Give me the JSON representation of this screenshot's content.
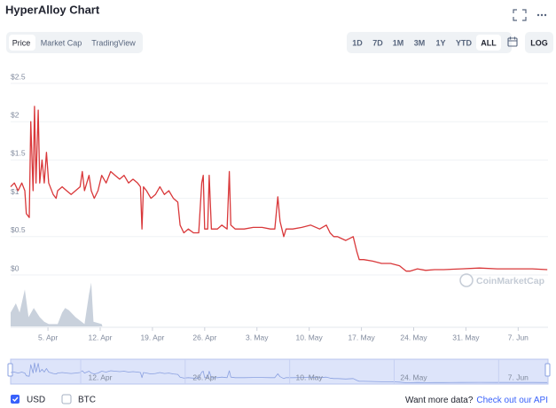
{
  "chart_data": {
    "type": "line",
    "title": "HyperAlloy Chart",
    "x": [
      0.0,
      0.5,
      1.0,
      1.5,
      1.9,
      2.1,
      2.5,
      2.7,
      3.0,
      3.2,
      3.4,
      3.7,
      3.9,
      4.2,
      4.5,
      4.8,
      5.1,
      5.7,
      6.1,
      6.3,
      6.9,
      7.5,
      8.1,
      8.7,
      9.3,
      9.6,
      9.9,
      10.5,
      10.8,
      11.2,
      11.7,
      12.2,
      12.8,
      13.4,
      14.0,
      14.6,
      15.2,
      15.8,
      16.4,
      17.0,
      17.4,
      17.6,
      17.8,
      18.2,
      18.8,
      19.4,
      20.0,
      20.6,
      21.2,
      21.8,
      22.4,
      22.7,
      23.2,
      23.8,
      24.5,
      25.2,
      25.6,
      25.8,
      26.0,
      26.4,
      26.6,
      26.9,
      27.7,
      28.3,
      29.0,
      29.3,
      29.5,
      30.1,
      31.3,
      32.5,
      33.7,
      34.8,
      35.4,
      35.8,
      36.1,
      36.6,
      36.9,
      37.8,
      39.0,
      40.2,
      41.4,
      42.3,
      42.8,
      43.3,
      43.8,
      44.9,
      45.9,
      46.4,
      46.7,
      47.3,
      48.5,
      49.7,
      50.9,
      52.1,
      53.0,
      53.5,
      54.5,
      55.6,
      56.8,
      58.0,
      60.4,
      62.8,
      65.2,
      67.5,
      69.9,
      71.9
    ],
    "series": [
      {
        "name": "USD",
        "color": "#d9383a",
        "values": [
          1.15,
          1.2,
          1.1,
          1.2,
          1.1,
          0.8,
          0.75,
          2.0,
          1.1,
          2.2,
          1.2,
          2.15,
          1.2,
          1.5,
          1.2,
          1.6,
          1.2,
          1.05,
          1.0,
          1.1,
          1.15,
          1.1,
          1.05,
          1.1,
          1.15,
          1.35,
          1.1,
          1.3,
          1.1,
          1.0,
          1.1,
          1.3,
          1.2,
          1.35,
          1.3,
          1.25,
          1.3,
          1.2,
          1.25,
          1.2,
          1.15,
          0.6,
          1.15,
          1.1,
          1.0,
          1.05,
          1.15,
          1.05,
          1.1,
          1.0,
          0.95,
          0.65,
          0.55,
          0.6,
          0.55,
          0.55,
          1.2,
          1.3,
          0.6,
          0.6,
          1.3,
          0.6,
          0.6,
          0.65,
          0.6,
          1.35,
          0.65,
          0.6,
          0.6,
          0.62,
          0.62,
          0.6,
          0.6,
          1.02,
          0.7,
          0.5,
          0.6,
          0.6,
          0.62,
          0.65,
          0.6,
          0.65,
          0.55,
          0.5,
          0.5,
          0.45,
          0.5,
          0.3,
          0.2,
          0.2,
          0.18,
          0.15,
          0.15,
          0.12,
          0.05,
          0.05,
          0.08,
          0.06,
          0.07,
          0.07,
          0.08,
          0.09,
          0.08,
          0.08,
          0.08,
          0.07
        ]
      }
    ],
    "xlim": [
      0,
      72
    ],
    "ylim": [
      0,
      2.5
    ],
    "yticks": [
      {
        "value": 0,
        "label": "$0"
      },
      {
        "value": 0.5,
        "label": "$0.5"
      },
      {
        "value": 1,
        "label": "$1"
      },
      {
        "value": 1.5,
        "label": "$1.5"
      },
      {
        "value": 2,
        "label": "$2"
      },
      {
        "value": 2.5,
        "label": "$2.5"
      }
    ],
    "xticks": [
      {
        "value": 5,
        "label": "5. Apr"
      },
      {
        "value": 12,
        "label": "12. Apr"
      },
      {
        "value": 19,
        "label": "19. Apr"
      },
      {
        "value": 26,
        "label": "26. Apr"
      },
      {
        "value": 33,
        "label": "3. May"
      },
      {
        "value": 40,
        "label": "10. May"
      },
      {
        "value": 47,
        "label": "17. May"
      },
      {
        "value": 54,
        "label": "24. May"
      },
      {
        "value": 61,
        "label": "31. May"
      },
      {
        "value": 68,
        "label": "7. Jun"
      }
    ],
    "navigator_xticks": [
      {
        "value": 12,
        "label": "12. Apr"
      },
      {
        "value": 26,
        "label": "26. Apr"
      },
      {
        "value": 40,
        "label": "10. May"
      },
      {
        "value": 54,
        "label": "24. May"
      },
      {
        "value": 68,
        "label": "7. Jun"
      }
    ],
    "grid": true,
    "volume": {
      "color": "#c9d1dc",
      "ylim": [
        0,
        1
      ],
      "x": [
        0.0,
        0.7,
        1.2,
        1.9,
        2.4,
        3.1,
        3.9,
        4.5,
        5.1,
        6.3,
        6.9,
        7.3,
        7.8,
        8.7,
        9.9,
        10.5,
        10.8,
        11.1,
        12.2,
        12.3
      ],
      "values": [
        0.3,
        0.5,
        0.3,
        0.8,
        0.2,
        0.4,
        0.2,
        0.1,
        0.05,
        0.05,
        0.3,
        0.4,
        0.35,
        0.2,
        0.05,
        0.7,
        0.95,
        0.1,
        0.05,
        0
      ]
    }
  },
  "tabs": [
    "Price",
    "Market Cap",
    "TradingView"
  ],
  "ranges": [
    "1D",
    "7D",
    "1M",
    "3M",
    "1Y",
    "YTD",
    "ALL"
  ],
  "log_button": "LOG",
  "watermark": "CoinMarketCap",
  "alt_currency": "BTC",
  "footer": {
    "prompt": "Want more data?",
    "link": "Check out our API"
  }
}
